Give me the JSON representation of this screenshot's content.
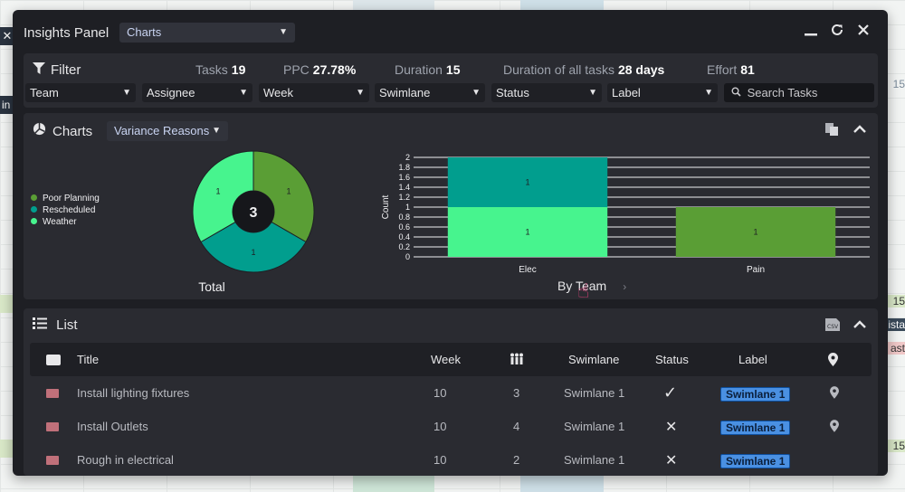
{
  "background": {
    "left_close_glyph": "✕",
    "left_text": "in",
    "right_cells": [
      "15",
      "15",
      "ista",
      "ast",
      "15"
    ]
  },
  "panel": {
    "title": "Insights Panel",
    "view_select": "Charts",
    "window_buttons": [
      "minimize-icon",
      "refresh-icon",
      "close-icon"
    ]
  },
  "filter": {
    "label": "Filter",
    "stats": [
      {
        "label": "Tasks",
        "value": "19"
      },
      {
        "label": "PPC",
        "value": "27.78%"
      },
      {
        "label": "Duration",
        "value": "15"
      },
      {
        "label": "Duration of all tasks",
        "value": "28 days"
      },
      {
        "label": "Effort",
        "value": "81"
      }
    ],
    "selects": [
      "Team",
      "Assignee",
      "Week",
      "Swimlane",
      "Status",
      "Label"
    ],
    "search_placeholder": "Search Tasks"
  },
  "charts": {
    "label": "Charts",
    "select": "Variance Reasons",
    "colors": {
      "Poor Planning": "#5a9e35",
      "Rescheduled": "#019e8e",
      "Weather": "#47f48e"
    },
    "chart_data": [
      {
        "type": "pie",
        "title": "Total",
        "center_label": "3",
        "legend": [
          "Poor Planning",
          "Rescheduled",
          "Weather"
        ],
        "slices": [
          {
            "name": "Poor Planning",
            "value": 1
          },
          {
            "name": "Rescheduled",
            "value": 1
          },
          {
            "name": "Weather",
            "value": 1
          }
        ]
      },
      {
        "type": "bar",
        "title": "By Team",
        "ylabel": "Count",
        "ylim": [
          0,
          2
        ],
        "yticks": [
          "0",
          "0.2",
          "0.4",
          "0.6",
          "0.8",
          "1",
          "1.2",
          "1.4",
          "1.6",
          "1.8",
          "2"
        ],
        "categories": [
          "Elec",
          "Pain"
        ],
        "series": [
          {
            "name": "Weather",
            "values": [
              1,
              0
            ]
          },
          {
            "name": "Rescheduled",
            "values": [
              1,
              0
            ]
          },
          {
            "name": "Poor Planning",
            "values": [
              0,
              1
            ]
          }
        ]
      }
    ]
  },
  "list": {
    "label": "List",
    "columns": [
      "Title",
      "Week",
      "Swimlane",
      "Status",
      "Label"
    ],
    "rows": [
      {
        "title": "Install lighting fixtures",
        "week": "10",
        "crew": "3",
        "swimlane": "Swimlane 1",
        "status": "✓",
        "label": "Swimlane 1"
      },
      {
        "title": "Install Outlets",
        "week": "10",
        "crew": "4",
        "swimlane": "Swimlane 1",
        "status": "✕",
        "label": "Swimlane 1"
      },
      {
        "title": "Rough in electrical",
        "week": "10",
        "crew": "2",
        "swimlane": "Swimlane 1",
        "status": "✕",
        "label": "Swimlane 1"
      }
    ]
  }
}
